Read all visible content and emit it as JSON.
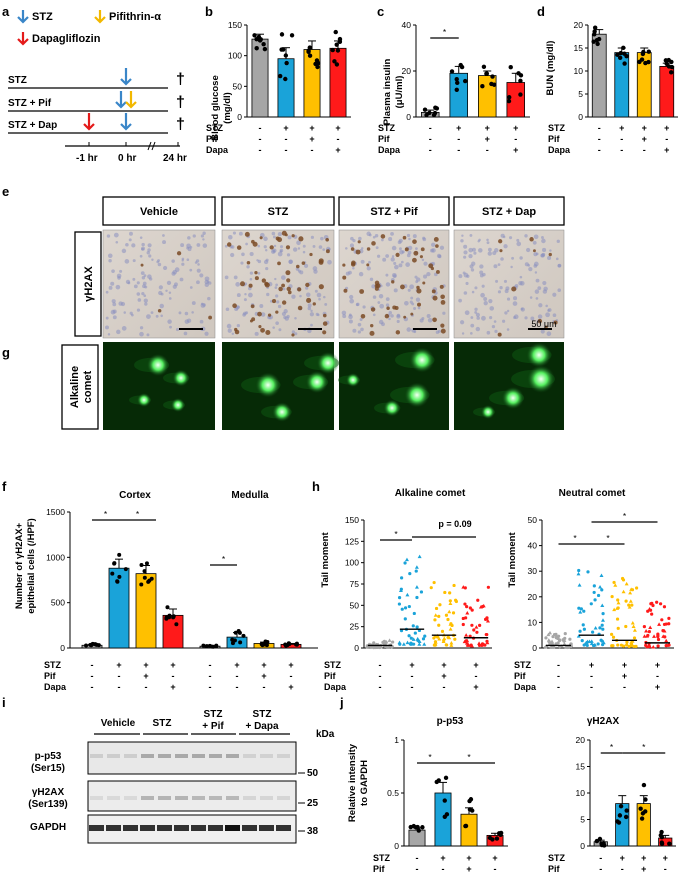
{
  "panel_letters": [
    "a",
    "b",
    "c",
    "d",
    "e",
    "g",
    "f",
    "h",
    "i",
    "j"
  ],
  "legend": {
    "stz": "STZ",
    "pif": "Pifithrin-α",
    "dapa": "Dapagliflozin"
  },
  "schema": {
    "rows": [
      "STZ",
      "STZ + Pif",
      "STZ + Dap"
    ],
    "times": [
      "-1 hr",
      "0 hr",
      "24 hr"
    ],
    "dagger": "†"
  },
  "cond_labels": [
    "STZ",
    "Pif",
    "Dapa"
  ],
  "cond_signs": [
    [
      "-",
      "+",
      "+",
      "+"
    ],
    [
      "-",
      "-",
      "+",
      "-"
    ],
    [
      "-",
      "-",
      "-",
      "+"
    ]
  ],
  "colors": {
    "vehicle": "#a6a6a6",
    "stz": "#1aa3d9",
    "pif": "#ffc000",
    "dapa": "#ff1a1a",
    "stz_arrow": "#3a86c8",
    "pif_arrow": "#f2b800",
    "dapa_arrow": "#e41a1a"
  },
  "chart_data": [
    {
      "id": "b",
      "type": "bar",
      "ylabel": "Blood glucose (mg/dl)",
      "ylim": [
        0,
        150
      ],
      "yticks": [
        0,
        50,
        100,
        150
      ],
      "values": [
        127,
        95,
        110,
        112
      ],
      "errors": [
        8,
        18,
        14,
        12
      ]
    },
    {
      "id": "c",
      "type": "bar",
      "ylabel": "Plasma insulin (μU/ml)",
      "ylim": [
        0,
        40
      ],
      "yticks": [
        0,
        20,
        40
      ],
      "values": [
        2,
        19,
        18,
        15
      ],
      "errors": [
        1,
        3,
        2,
        4
      ],
      "annotation": "*"
    },
    {
      "id": "d",
      "type": "bar",
      "ylabel": "BUN (mg/dl)",
      "ylim": [
        0,
        20
      ],
      "yticks": [
        0,
        5,
        10,
        15,
        20
      ],
      "values": [
        18,
        14,
        14,
        11
      ],
      "errors": [
        1,
        1,
        1,
        0.7
      ]
    },
    {
      "id": "f",
      "type": "bar",
      "ylabel": "Number of γH2AX+ epithelial cells (/HPF)",
      "ylim": [
        0,
        1500
      ],
      "yticks": [
        0,
        500,
        1000,
        1500
      ],
      "groups": [
        "Cortex",
        "Medulla"
      ],
      "values": [
        [
          30,
          880,
          820,
          360
        ],
        [
          20,
          120,
          50,
          40
        ]
      ],
      "errors": [
        [
          10,
          100,
          90,
          70
        ],
        [
          5,
          50,
          15,
          10
        ]
      ]
    },
    {
      "id": "h1",
      "type": "scatter",
      "title": "Alkaline comet",
      "ylabel": "Tail moment",
      "ylim": [
        0,
        150
      ],
      "yticks": [
        0,
        25,
        50,
        75,
        100,
        125,
        150
      ],
      "medians": [
        3,
        22,
        15,
        12
      ],
      "annotation": "p = 0.09"
    },
    {
      "id": "h2",
      "type": "scatter",
      "title": "Neutral comet",
      "ylabel": "Tail moment",
      "ylim": [
        0,
        50
      ],
      "yticks": [
        0,
        10,
        20,
        30,
        40,
        50
      ],
      "medians": [
        1,
        5,
        3,
        2
      ]
    },
    {
      "id": "j1",
      "type": "bar",
      "title": "p-p53",
      "ylabel": "Relative intensity to GAPDH",
      "ylim": [
        0,
        1
      ],
      "yticks": [
        0,
        0.5,
        1
      ],
      "values": [
        0.15,
        0.5,
        0.3,
        0.1
      ],
      "errors": [
        0.02,
        0.1,
        0.06,
        0.02
      ]
    },
    {
      "id": "j2",
      "type": "bar",
      "title": "γH2AX",
      "ylim": [
        0,
        20
      ],
      "yticks": [
        0,
        5,
        10,
        15,
        20
      ],
      "values": [
        0.8,
        8,
        8,
        1.5
      ],
      "errors": [
        0.3,
        1.5,
        1.5,
        0.5
      ]
    }
  ],
  "ytick_text": {
    "b": [
      "0",
      "50",
      "100",
      "150"
    ],
    "c": [
      "0",
      "20",
      "40"
    ],
    "d": [
      "0",
      "5",
      "10",
      "15",
      "20"
    ],
    "f": [
      "0",
      "500",
      "1000",
      "1500"
    ],
    "h1": [
      "0",
      "25",
      "50",
      "75",
      "100",
      "125",
      "150"
    ],
    "h2": [
      "0",
      "10",
      "20",
      "30",
      "40",
      "50"
    ],
    "j1": [
      "0",
      "0.5",
      "1"
    ],
    "j2": [
      "0",
      "5",
      "10",
      "15",
      "20"
    ]
  },
  "ylabels": {
    "b": "Blood glucose",
    "b2": "(mg/dl)",
    "c": "Plasma insulin",
    "c2": "(μU/ml)",
    "d": "BUN (mg/dl)",
    "f": "Number of γH2AX+",
    "f2": "epithelial cells (/HPF)",
    "h": "Tail moment",
    "j": "Relative intensity",
    "j2": "to GAPDH"
  },
  "f_groups": [
    "Cortex",
    "Medulla"
  ],
  "h_titles": [
    "Alkaline comet",
    "Neutral comet"
  ],
  "h_pval": "p = 0.09",
  "j_titles": [
    "p-p53",
    "γH2AX"
  ],
  "star": "*",
  "e_headers": [
    "Vehicle",
    "STZ",
    "STZ + Pif",
    "STZ + Dap"
  ],
  "e_row": "γH2AX",
  "g_row": "Alkaline comet",
  "scale_bar": "50 μm",
  "blot": {
    "headers": [
      "Vehicle",
      "STZ",
      "STZ + Pif",
      "STZ + Dapa"
    ],
    "kda": "kDa",
    "rows": [
      {
        "name": "p-p53",
        "sub": "(Ser15)",
        "kda": "50"
      },
      {
        "name": "γH2AX",
        "sub": "(Ser139)",
        "kda": "25"
      },
      {
        "name": "GAPDH",
        "sub": "",
        "kda": "38"
      }
    ]
  }
}
